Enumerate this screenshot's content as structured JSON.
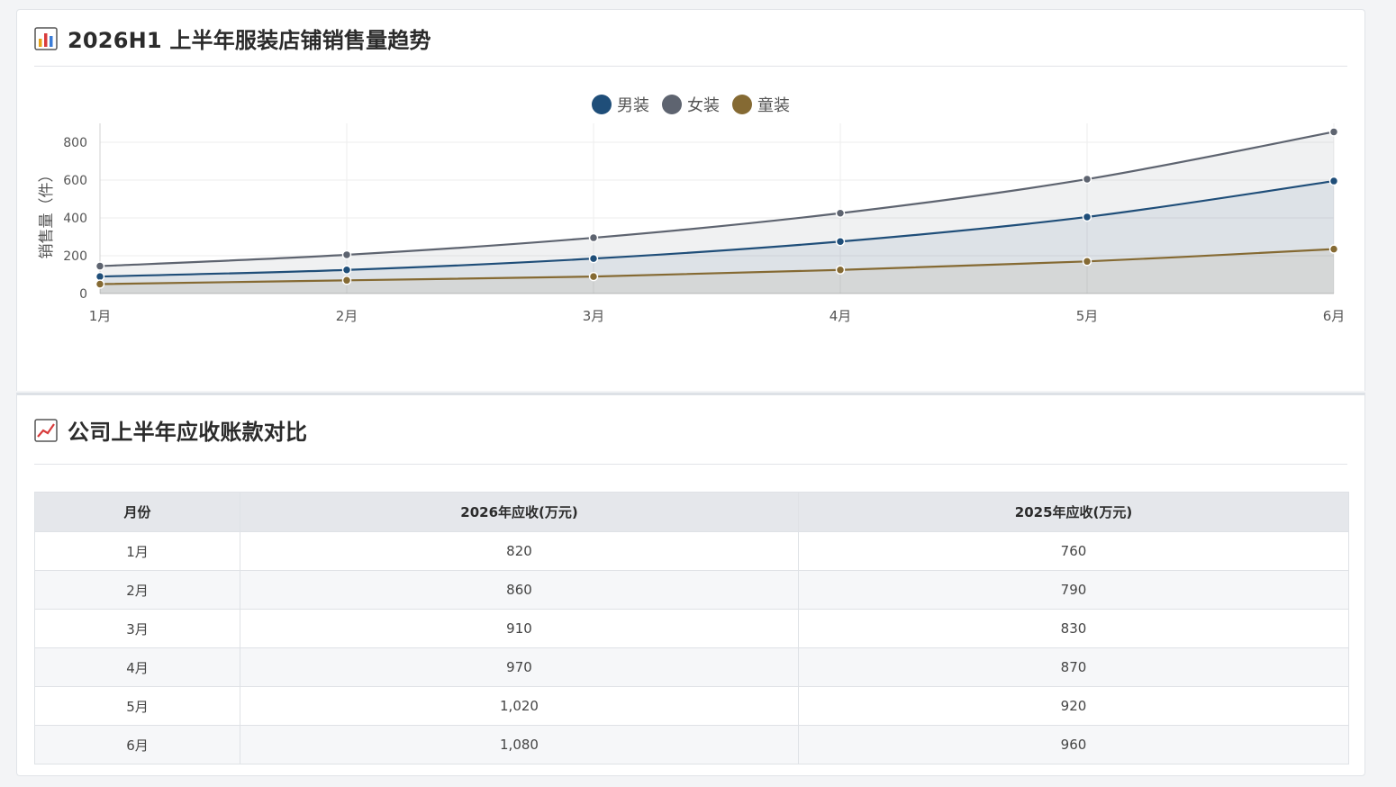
{
  "chart_section": {
    "title": "2026H1 上半年服装店铺销售量趋势",
    "icon": "bar-chart-icon"
  },
  "table_section": {
    "title": "公司上半年应收账款对比",
    "icon": "line-chart-icon",
    "headers": [
      "月份",
      "2026年应收(万元)",
      "2025年应收(万元)"
    ],
    "rows": [
      [
        "1月",
        "820",
        "760"
      ],
      [
        "2月",
        "860",
        "790"
      ],
      [
        "3月",
        "910",
        "830"
      ],
      [
        "4月",
        "970",
        "870"
      ],
      [
        "5月",
        "1,020",
        "920"
      ],
      [
        "6月",
        "1,080",
        "960"
      ]
    ]
  },
  "chart_data": {
    "type": "line",
    "categories": [
      "1月",
      "2月",
      "3月",
      "4月",
      "5月",
      "6月"
    ],
    "ylabel": "销售量（件）",
    "ylim": [
      0,
      900
    ],
    "yticks": [
      0,
      200,
      400,
      600,
      800
    ],
    "grid": true,
    "legend": "top-center",
    "series": [
      {
        "name": "男装",
        "color": "#1f4e79",
        "values": [
          90,
          125,
          185,
          275,
          405,
          595
        ]
      },
      {
        "name": "女装",
        "color": "#5e6470",
        "values": [
          145,
          205,
          295,
          425,
          605,
          855
        ]
      },
      {
        "name": "童装",
        "color": "#856a33",
        "values": [
          50,
          70,
          90,
          125,
          170,
          235
        ]
      }
    ]
  }
}
